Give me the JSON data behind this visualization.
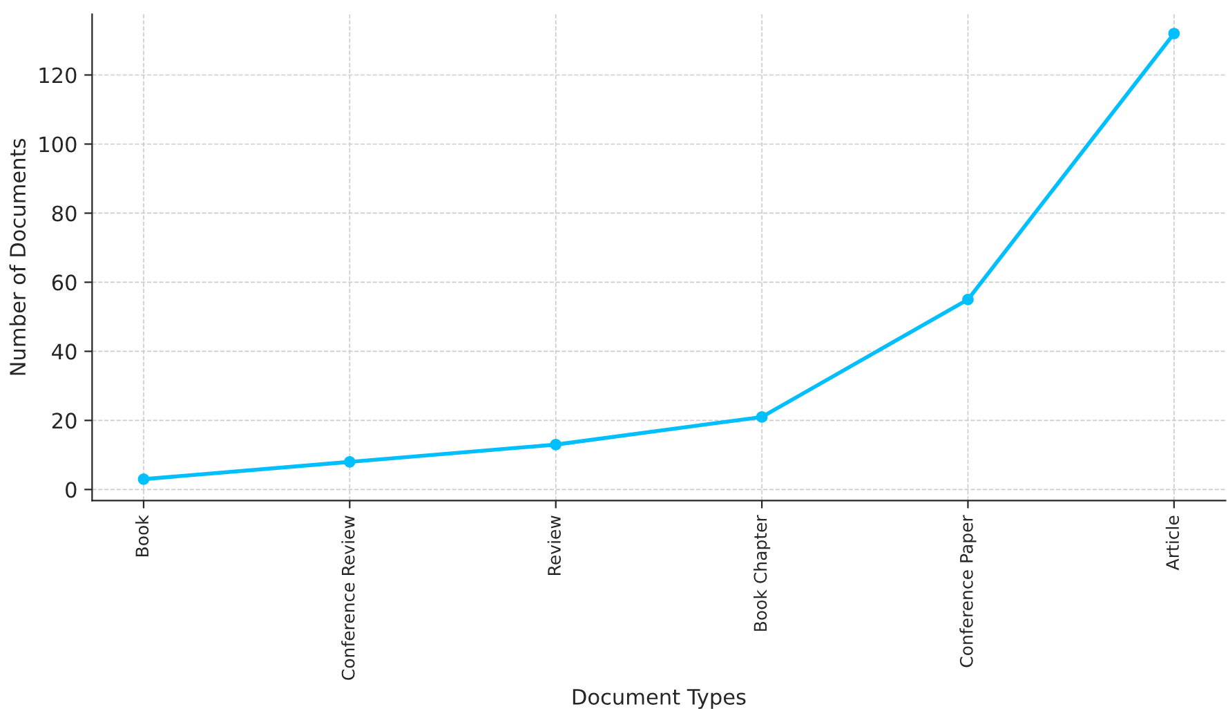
{
  "chart_data": {
    "type": "line",
    "xlabel": "Document Types",
    "ylabel": "Number of Documents",
    "categories": [
      "Book",
      "Conference Review",
      "Review",
      "Book Chapter",
      "Conference Paper",
      "Article"
    ],
    "series": [
      {
        "color": "#00bfff",
        "values": [
          3,
          8,
          13,
          21,
          55,
          132
        ]
      }
    ],
    "ylim": [
      -3.2,
      137.6
    ],
    "yticks": [
      0,
      20,
      40,
      60,
      80,
      100,
      120
    ],
    "grid": true,
    "marker": "circle",
    "line_style": "solid"
  }
}
